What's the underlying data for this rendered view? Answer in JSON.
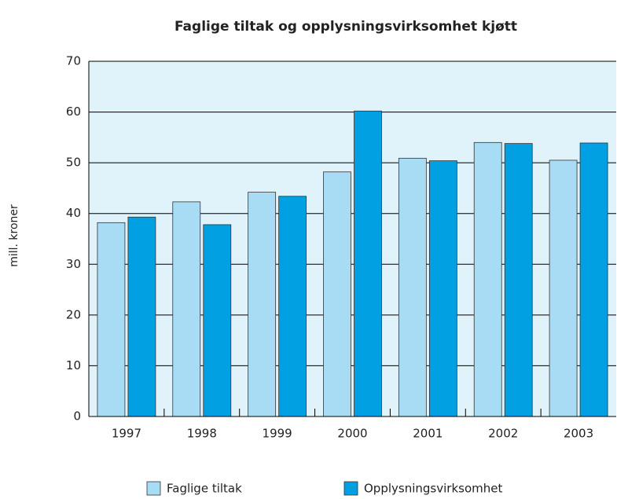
{
  "chart_data": {
    "type": "bar",
    "title": "Faglige tiltak og opplysningsvirksomhet kjøtt",
    "y_label": "mill. kroner",
    "categories": [
      "1997",
      "1998",
      "1999",
      "2000",
      "2001",
      "2002",
      "2003"
    ],
    "series": [
      {
        "name": "Faglige tiltak",
        "color": "#a8dcf5",
        "values": [
          38.2,
          42.3,
          44.2,
          48.2,
          50.9,
          54.0,
          50.5
        ]
      },
      {
        "name": "Opplysningsvirksomhet",
        "color": "#00a0e3",
        "values": [
          39.3,
          37.8,
          43.4,
          60.2,
          50.4,
          53.8,
          53.9
        ]
      }
    ],
    "ylim": [
      0,
      70
    ],
    "yticks": [
      0,
      10,
      20,
      30,
      40,
      50,
      60,
      70
    ],
    "grid": true
  }
}
